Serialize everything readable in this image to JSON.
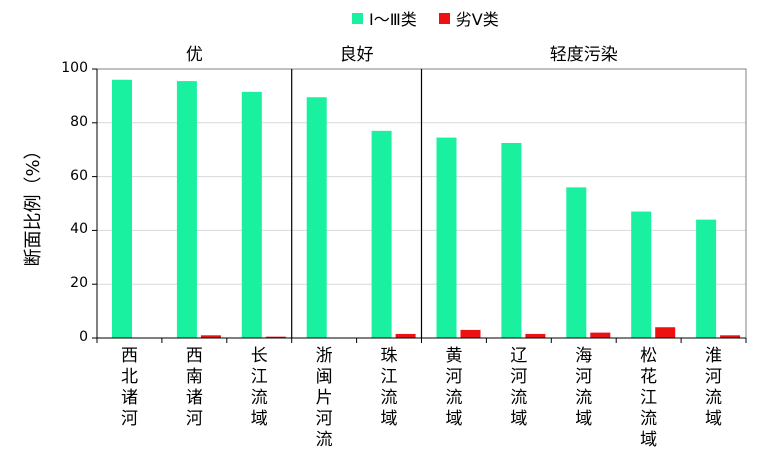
{
  "chart_data": {
    "type": "bar",
    "ylabel": "断面比例（%）",
    "ylim": [
      0,
      100
    ],
    "yticks": [
      "0",
      "20",
      "40",
      "60",
      "80",
      "100"
    ],
    "grid": true,
    "legend_position": "top",
    "categories": [
      "西北诸河",
      "西南诸河",
      "长江流域",
      "浙闽片河流",
      "珠江流域",
      "黄河流域",
      "辽河流域",
      "海河流域",
      "松花江流域",
      "淮河流域"
    ],
    "series": [
      {
        "name": "Ⅰ～Ⅲ类",
        "color": "#19f0a0",
        "values": [
          96,
          95.5,
          91.5,
          89.5,
          77,
          74.5,
          72.5,
          56,
          47,
          44
        ]
      },
      {
        "name": "劣Ⅴ类",
        "color": "#ee1111",
        "values": [
          0,
          1,
          0.5,
          0,
          1.5,
          3,
          1.5,
          2,
          4,
          1
        ]
      }
    ],
    "groups": [
      {
        "label": "优",
        "start": 0,
        "end": 2
      },
      {
        "label": "良好",
        "start": 3,
        "end": 4
      },
      {
        "label": "轻度污染",
        "start": 5,
        "end": 9
      }
    ]
  }
}
